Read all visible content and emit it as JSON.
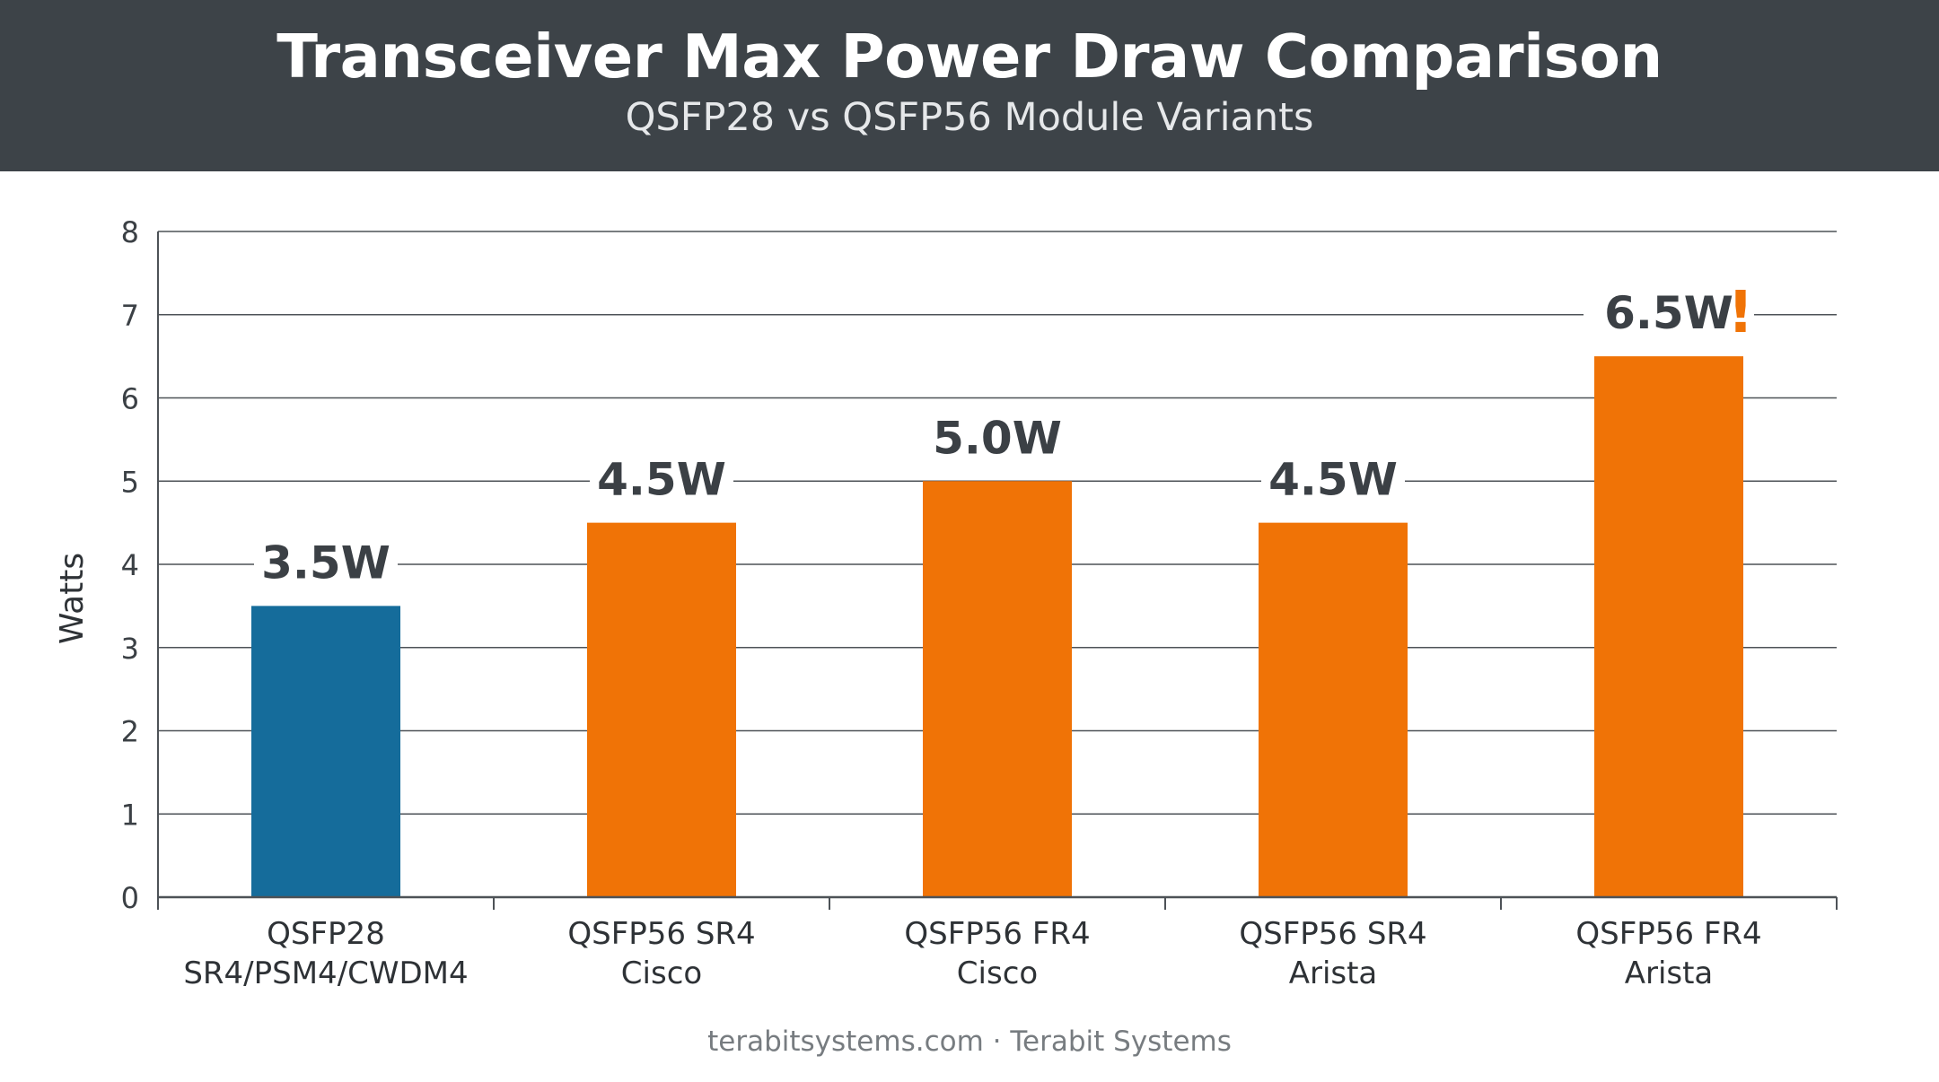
{
  "header": {
    "title": "Transceiver Max Power Draw Comparison",
    "subtitle": "QSFP28 vs QSFP56 Module Variants"
  },
  "footer": {
    "text": "terabitsystems.com · Terabit Systems"
  },
  "chart_data": {
    "type": "bar",
    "title": "Transceiver Max Power Draw Comparison",
    "subtitle": "QSFP28 vs QSFP56 Module Variants",
    "xlabel": "",
    "ylabel": "Watts",
    "ylim": [
      0,
      8
    ],
    "yticks": [
      "0",
      "1",
      "2",
      "3",
      "4",
      "5",
      "6",
      "7",
      "8"
    ],
    "grid": true,
    "categories": [
      [
        "QSFP28",
        "SR4/PSM4/CWDM4"
      ],
      [
        "QSFP56 SR4",
        "Cisco"
      ],
      [
        "QSFP56 FR4",
        "Cisco"
      ],
      [
        "QSFP56 SR4",
        "Arista"
      ],
      [
        "QSFP56 FR4",
        "Arista"
      ]
    ],
    "values": [
      3.5,
      4.5,
      5.0,
      4.5,
      6.5
    ],
    "data_labels": [
      "3.5W",
      "4.5W",
      "5.0W",
      "4.5W",
      "6.5W"
    ],
    "annotation": {
      "index": 4,
      "text": "!"
    },
    "colors": [
      "#156c9b",
      "#f07306",
      "#f07306",
      "#f07306",
      "#f07306"
    ],
    "annotation_color": "#f07306",
    "label_color": "#3b4045",
    "grid_color": "#4d5257"
  }
}
